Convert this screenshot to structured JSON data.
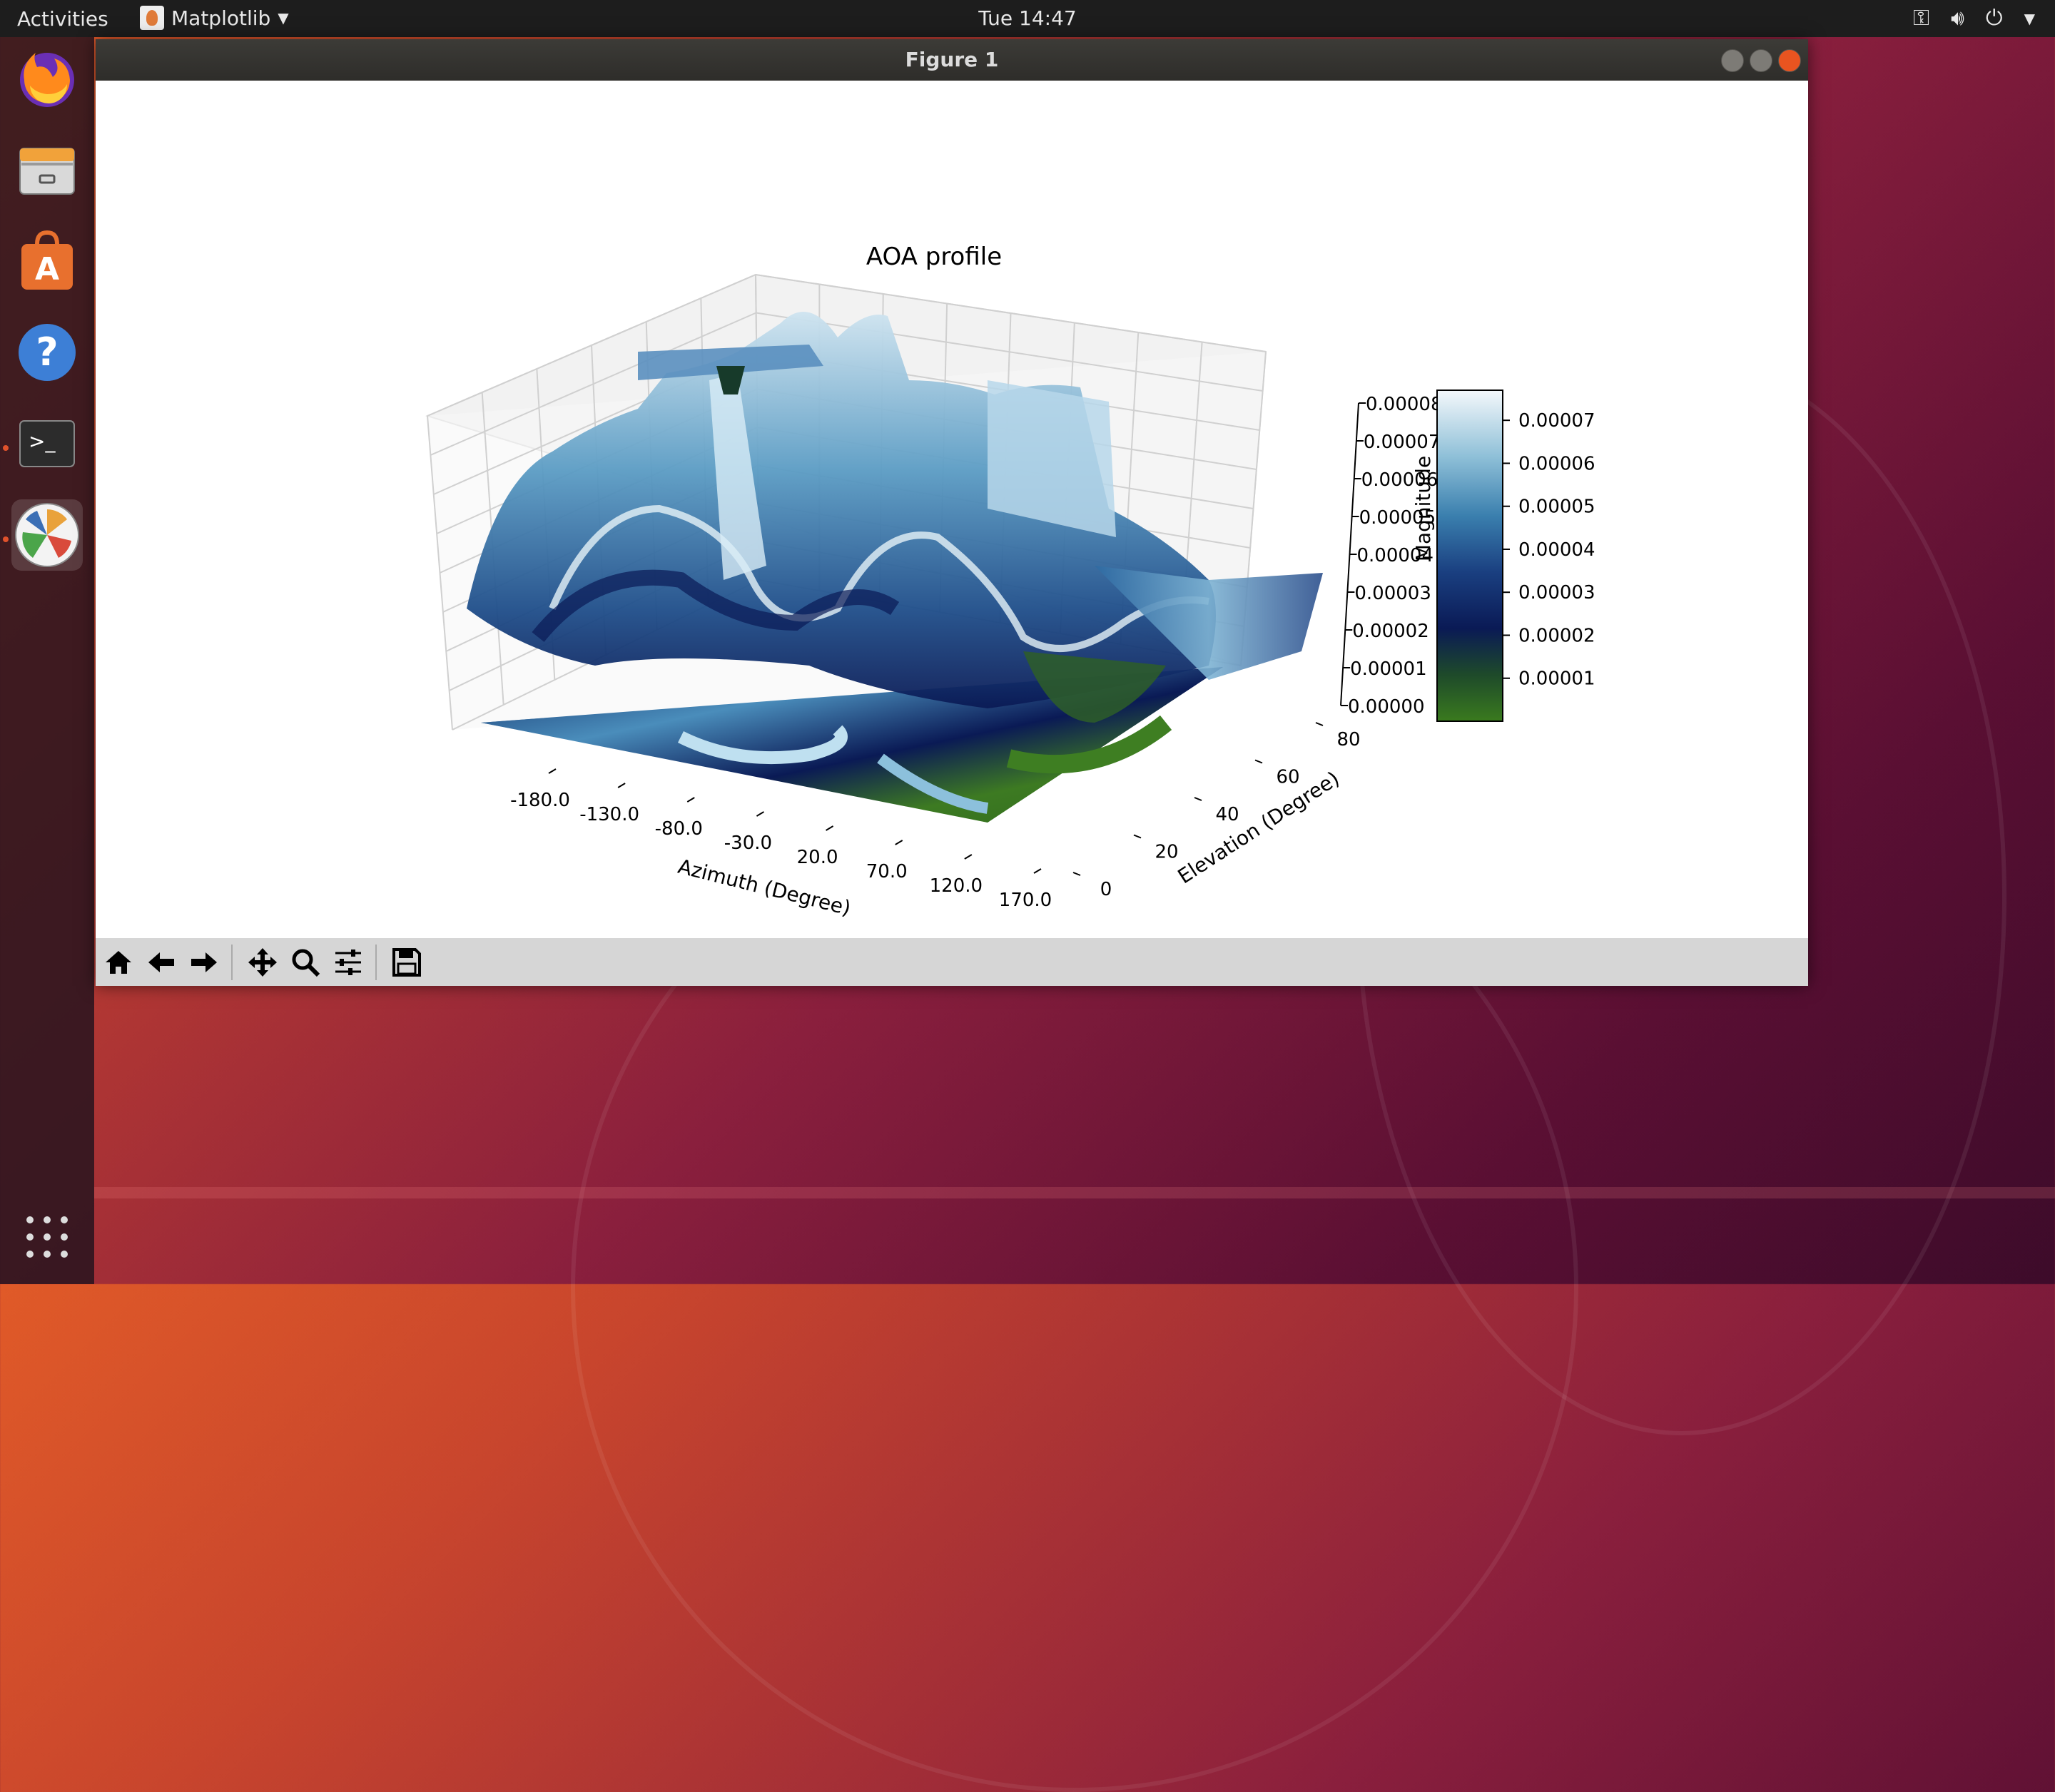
{
  "topbar": {
    "activities": "Activities",
    "app_name": "Matplotlib",
    "clock": "Tue 14:47"
  },
  "window": {
    "title": "Figure 1"
  },
  "dock": {
    "items": [
      "firefox-icon",
      "files-icon",
      "software-icon",
      "help-icon",
      "terminal-icon",
      "matplotlib-icon"
    ]
  },
  "toolbar": {
    "buttons": [
      "home-icon",
      "back-icon",
      "forward-icon",
      "pan-icon",
      "zoom-icon",
      "configure-icon",
      "save-icon"
    ]
  },
  "chart_data": {
    "type": "surface3d",
    "title": "AOA profile",
    "xlabel": "Azimuth (Degree)",
    "ylabel": "Elevation (Degree)",
    "zlabel": "Magnitude",
    "x_ticks": [
      "-180.0",
      "-130.0",
      "-80.0",
      "-30.0",
      "20.0",
      "70.0",
      "120.0",
      "170.0"
    ],
    "y_ticks": [
      "0",
      "20",
      "40",
      "60",
      "80"
    ],
    "z_ticks": [
      "0.00000",
      "0.00001",
      "0.00002",
      "0.00003",
      "0.00004",
      "0.00005",
      "0.00006",
      "0.00007",
      "0.00008"
    ],
    "xlim": [
      -180,
      180
    ],
    "ylim": [
      0,
      90
    ],
    "zlim": [
      0,
      8e-05
    ],
    "colorbar": {
      "ticks": [
        "0.00001",
        "0.00002",
        "0.00003",
        "0.00004",
        "0.00005",
        "0.00006",
        "0.00007"
      ],
      "range": [
        0,
        7.7e-05
      ],
      "colormap": [
        "#3a7a1e",
        "#1e4a2a",
        "#0a1a55",
        "#1a3f80",
        "#3a7fae",
        "#8fc0d8",
        "#f4f8fb"
      ]
    },
    "grid": true
  }
}
